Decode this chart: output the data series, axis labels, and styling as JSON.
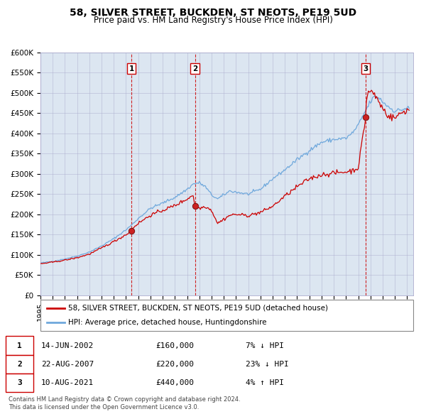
{
  "title": "58, SILVER STREET, BUCKDEN, ST NEOTS, PE19 5UD",
  "subtitle": "Price paid vs. HM Land Registry's House Price Index (HPI)",
  "legend_line1": "58, SILVER STREET, BUCKDEN, ST NEOTS, PE19 5UD (detached house)",
  "legend_line2": "HPI: Average price, detached house, Huntingdonshire",
  "footer1": "Contains HM Land Registry data © Crown copyright and database right 2024.",
  "footer2": "This data is licensed under the Open Government Licence v3.0.",
  "transactions": [
    {
      "num": 1,
      "date": "14-JUN-2002",
      "price": 160000,
      "pct": "7%",
      "dir": "↓"
    },
    {
      "num": 2,
      "date": "22-AUG-2007",
      "price": 220000,
      "pct": "23%",
      "dir": "↓"
    },
    {
      "num": 3,
      "date": "10-AUG-2021",
      "price": 440000,
      "pct": "4%",
      "dir": "↑"
    }
  ],
  "transaction_dates_decimal": [
    2002.45,
    2007.64,
    2021.61
  ],
  "trans_prices": [
    160000,
    220000,
    440000
  ],
  "hpi_color": "#6fa8dc",
  "price_color": "#cc0000",
  "bg_color": "#dce6f1",
  "grid_color": "#aaaacc",
  "vline_color": "#cc0000",
  "ylim": [
    0,
    600000
  ],
  "yticks": [
    0,
    50000,
    100000,
    150000,
    200000,
    250000,
    300000,
    350000,
    400000,
    450000,
    500000,
    550000,
    600000
  ],
  "ytick_labels": [
    "£0",
    "£50K",
    "£100K",
    "£150K",
    "£200K",
    "£250K",
    "£300K",
    "£350K",
    "£400K",
    "£450K",
    "£500K",
    "£550K",
    "£600K"
  ],
  "xlim_start": 1995.0,
  "xlim_end": 2025.5,
  "title_fontsize": 10,
  "subtitle_fontsize": 8.5,
  "tick_fontsize": 7.5,
  "legend_fontsize": 7.5,
  "table_fontsize": 8,
  "footer_fontsize": 6
}
